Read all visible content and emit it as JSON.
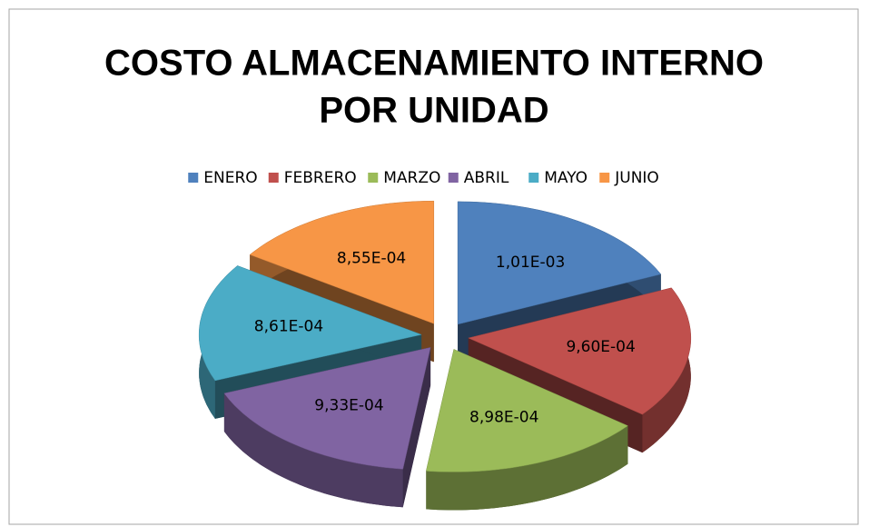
{
  "chart_data": {
    "type": "pie3d",
    "title": [
      "COSTO ALMACENAMIENTO INTERNO",
      "POR UNIDAD"
    ],
    "categories": [
      "ENERO",
      "FEBRERO",
      "MARZO",
      "ABRIL",
      "MAYO",
      "JUNIO"
    ],
    "values": [
      0.00101,
      0.00096,
      0.000898,
      0.000933,
      0.000861,
      0.000855
    ],
    "value_labels": [
      "1,01E-03",
      "9,60E-04",
      "8,98E-04",
      "9,33E-04",
      "8,61E-04",
      "8,55E-04"
    ],
    "colors": [
      "#4f81bd",
      "#c0504d",
      "#9bbb59",
      "#8064a2",
      "#4bacc6",
      "#f79646"
    ],
    "legend": "top"
  }
}
